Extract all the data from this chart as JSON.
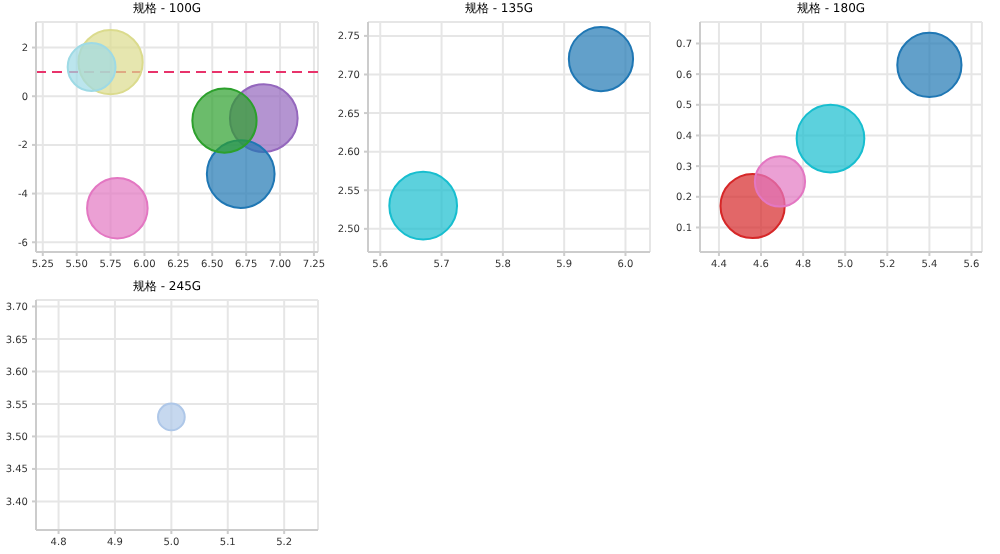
{
  "chart_data": [
    {
      "type": "bubble",
      "title": "规格 - 100G",
      "x": [
        5.61,
        5.75,
        6.59,
        6.88,
        6.71,
        5.8
      ],
      "values": [
        1.2,
        1.4,
        -1.0,
        -0.9,
        -3.2,
        -4.6
      ],
      "sizes": [
        0.5,
        0.9,
        0.9,
        1,
        1,
        0.8
      ],
      "colors": [
        "#9edae5",
        "#dbdb8d",
        "#2ca02c",
        "#9467bd",
        "#1f77b4",
        "#e377c2"
      ],
      "xlim": [
        5.2,
        7.28
      ],
      "xticks": [
        5.25,
        {
          "value": 5.5,
          "label": "5.50"
        },
        5.75,
        {
          "value": 6,
          "label": "6.00"
        },
        6.25,
        {
          "value": 6.5,
          "label": "6.50"
        },
        6.75,
        {
          "value": 7,
          "label": "7.00"
        },
        7.25
      ],
      "ylim": [
        -6.4,
        3.05
      ],
      "yticks": [
        -6,
        -4,
        -2,
        0,
        2
      ],
      "ref_lines": [
        {
          "axis": "y",
          "value": 1,
          "color": "#e8336b",
          "line_style": "dashed"
        }
      ],
      "grid": true
    },
    {
      "type": "bubble",
      "title": "规格 - 135G",
      "x": [
        5.96,
        5.67
      ],
      "values": [
        2.72,
        2.53
      ],
      "sizes": [
        0.9,
        1
      ],
      "colors": [
        "#1f77b4",
        "#17becf"
      ],
      "xlim": [
        5.58,
        6.04
      ],
      "xticks": [
        5.6,
        5.7,
        5.8,
        5.9,
        {
          "value": 6,
          "label": "6.0"
        }
      ],
      "ylim": [
        2.47,
        2.768
      ],
      "yticks": [
        {
          "value": 2.5,
          "label": "2.50"
        },
        2.55,
        {
          "value": 2.6,
          "label": "2.60"
        },
        2.65,
        {
          "value": 2.7,
          "label": "2.70"
        },
        2.75
      ],
      "grid": true
    },
    {
      "type": "bubble",
      "title": "规格 - 180G",
      "x": [
        5.4,
        4.93,
        4.69,
        4.56
      ],
      "values": [
        0.63,
        0.39,
        0.25,
        0.17
      ],
      "sizes": [
        0.9,
        1,
        0.55,
        0.9
      ],
      "colors": [
        "#1f77b4",
        "#17becf",
        "#e377c2",
        "#d62728"
      ],
      "xlim": [
        4.31,
        5.65
      ],
      "xticks": [
        4.4,
        4.6,
        4.8,
        {
          "value": 5,
          "label": "5.0"
        },
        5.2,
        5.4,
        5.6
      ],
      "ylim": [
        0.02,
        0.77
      ],
      "yticks": [
        0.1,
        0.2,
        0.3,
        0.4,
        0.5,
        0.6,
        0.7
      ],
      "grid": true
    },
    {
      "type": "bubble",
      "title": "规格 - 245G",
      "x": [
        5.0
      ],
      "values": [
        3.53
      ],
      "sizes": [
        1
      ],
      "colors": [
        "#aec7e8"
      ],
      "xlim": [
        4.76,
        5.26
      ],
      "xticks": [
        4.8,
        4.9,
        {
          "value": 5,
          "label": "5.0"
        },
        5.1,
        5.2
      ],
      "ylim": [
        3.356,
        3.71
      ],
      "yticks": [
        {
          "value": 3.4,
          "label": "3.40"
        },
        3.45,
        {
          "value": 3.5,
          "label": "3.50"
        },
        3.55,
        {
          "value": 3.6,
          "label": "3.60"
        },
        3.65,
        {
          "value": 3.7,
          "label": "3.70"
        }
      ],
      "grid": true
    }
  ]
}
